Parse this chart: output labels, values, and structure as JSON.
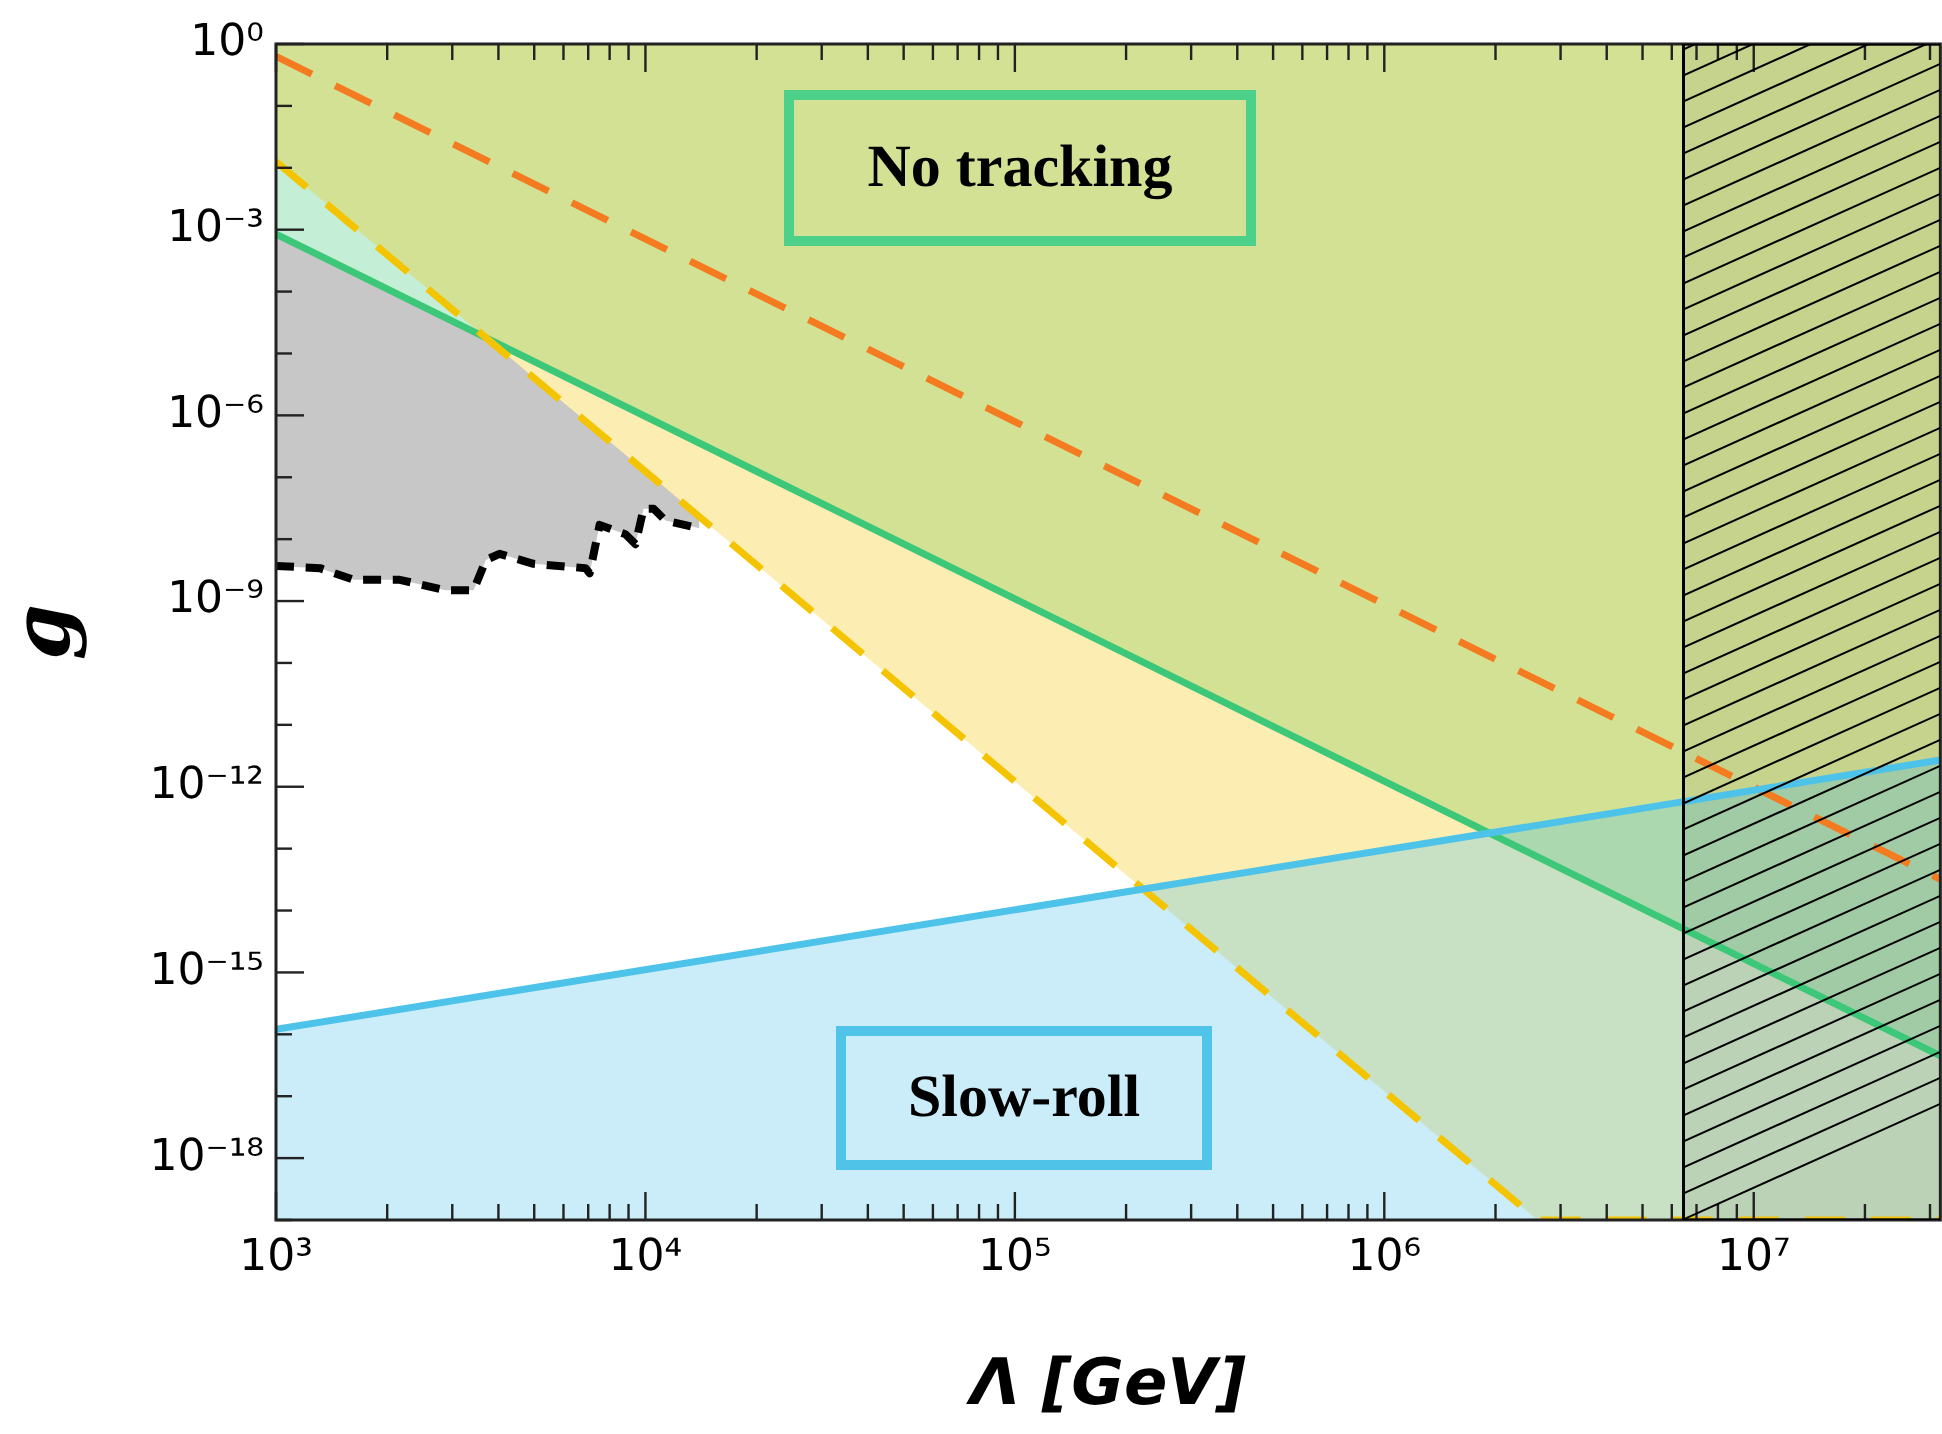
{
  "chart_data": {
    "type": "line",
    "xlabel": "Λ [GeV]",
    "ylabel": "g",
    "log": "xy",
    "xlim": [
      1000,
      32000000
    ],
    "ylim": [
      1e-19,
      1
    ],
    "xticks": [
      {
        "value": 1000,
        "label": "10³"
      },
      {
        "value": 2000,
        "label": null
      },
      {
        "value": 3000,
        "label": null
      },
      {
        "value": 4000,
        "label": null
      },
      {
        "value": 5000,
        "label": null
      },
      {
        "value": 6000,
        "label": null
      },
      {
        "value": 7000,
        "label": null
      },
      {
        "value": 8000,
        "label": null
      },
      {
        "value": 9000,
        "label": null
      },
      {
        "value": 10000,
        "label": "10⁴"
      },
      {
        "value": 20000,
        "label": null
      },
      {
        "value": 30000,
        "label": null
      },
      {
        "value": 40000,
        "label": null
      },
      {
        "value": 50000,
        "label": null
      },
      {
        "value": 60000,
        "label": null
      },
      {
        "value": 70000,
        "label": null
      },
      {
        "value": 80000,
        "label": null
      },
      {
        "value": 90000,
        "label": null
      },
      {
        "value": 100000,
        "label": "10⁵"
      },
      {
        "value": 200000,
        "label": null
      },
      {
        "value": 300000,
        "label": null
      },
      {
        "value": 400000,
        "label": null
      },
      {
        "value": 500000,
        "label": null
      },
      {
        "value": 600000,
        "label": null
      },
      {
        "value": 700000,
        "label": null
      },
      {
        "value": 800000,
        "label": null
      },
      {
        "value": 900000,
        "label": null
      },
      {
        "value": 1000000,
        "label": "10⁶"
      },
      {
        "value": 2000000,
        "label": null
      },
      {
        "value": 3000000,
        "label": null
      },
      {
        "value": 4000000,
        "label": null
      },
      {
        "value": 5000000,
        "label": null
      },
      {
        "value": 6000000,
        "label": null
      },
      {
        "value": 7000000,
        "label": null
      },
      {
        "value": 8000000,
        "label": null
      },
      {
        "value": 9000000,
        "label": null
      },
      {
        "value": 10000000,
        "label": "10⁷"
      },
      {
        "value": 20000000,
        "label": null
      },
      {
        "value": 30000000,
        "label": null
      }
    ],
    "yticks": [
      {
        "value": 1,
        "label": "10⁰"
      },
      {
        "value": 0.1,
        "label": null
      },
      {
        "value": 0.01,
        "label": null
      },
      {
        "value": 0.001,
        "label": "10⁻³"
      },
      {
        "value": 0.0001,
        "label": null
      },
      {
        "value": 1e-05,
        "label": null
      },
      {
        "value": 1e-06,
        "label": "10⁻⁶"
      },
      {
        "value": 1e-07,
        "label": null
      },
      {
        "value": 1e-08,
        "label": null
      },
      {
        "value": 1e-09,
        "label": "10⁻⁹"
      },
      {
        "value": 1e-10,
        "label": null
      },
      {
        "value": 1e-11,
        "label": null
      },
      {
        "value": 1e-12,
        "label": "10⁻¹²"
      },
      {
        "value": 1e-13,
        "label": null
      },
      {
        "value": 1e-14,
        "label": null
      },
      {
        "value": 1e-15,
        "label": "10⁻¹⁵"
      },
      {
        "value": 1e-16,
        "label": null
      },
      {
        "value": 1e-17,
        "label": null
      },
      {
        "value": 1e-18,
        "label": "10⁻¹⁸"
      },
      {
        "value": 1e-19,
        "label": null
      }
    ],
    "series": [
      {
        "type": "area",
        "color": "#4ec3ea",
        "line_style": "solid",
        "x": [
          1000,
          32000000
        ],
        "values": [
          1.2e-16,
          2.7e-12
        ]
      },
      {
        "color": "#f5c400",
        "line_style": "dashed",
        "x": [
          1000,
          2600000,
          32000000
        ],
        "values": [
          0.0126,
          1e-19,
          1e-19
        ],
        "lower": [
          0.0126,
          1e-19,
          1e-19
        ],
        "upper": [
          1,
          1,
          1
        ]
      },
      {
        "color": "#3cc878",
        "line_style": "solid",
        "x": [
          1000,
          32000000
        ],
        "values": [
          0.00085,
          4.5e-17
        ],
        "lower": [
          0.00085,
          4.5e-17
        ],
        "upper": [
          1,
          1
        ]
      },
      {
        "color": "#000000",
        "line_style": "dashed",
        "x": [
          1000,
          1315,
          1626,
          2163,
          2877,
          3428,
          3698,
          4027,
          4977,
          6887,
          7063,
          7516,
          8831,
          9397,
          9886,
          10520,
          11324,
          14000
        ],
        "values": [
          3.7e-09,
          3.4e-09,
          2.2e-09,
          2.2e-09,
          1.5e-09,
          1.5e-09,
          4.6e-09,
          5.8e-09,
          4e-09,
          3.4e-09,
          2.8e-09,
          1.7e-08,
          1.2e-08,
          8.3e-09,
          3.1e-08,
          3.1e-08,
          2e-08,
          1.5e-08
        ],
        "lower": [
          3.7e-09,
          3.4e-09,
          2.2e-09,
          2.2e-09,
          1.5e-09,
          1.5e-09,
          4.6e-09,
          5.8e-09,
          4e-09,
          3.4e-09,
          2.8e-09,
          1.7e-08,
          1.2e-08,
          8.3e-09,
          3.1e-08,
          3.1e-08,
          2e-08,
          1.5e-08
        ],
        "upper": [
          0.00085,
          0.00038,
          0.0002,
          8.7e-05,
          3.8e-05,
          2.2e-05,
          1.8e-05,
          1.2e-05,
          4.1e-06,
          8.1e-07,
          7.2e-07,
          5.2e-07,
          2.3e-07,
          1.7e-07,
          1.3e-07,
          9.8e-08,
          6.8e-08,
          2.3e-08
        ]
      },
      {
        "color": "#f47b20",
        "line_style": "dashed",
        "x": [
          1000,
          32000000
        ],
        "values": [
          0.63,
          3.2e-14
        ]
      }
    ],
    "bands": [
      {
        "axis": "x",
        "from": 6400000,
        "to": 32000000,
        "color": "#000000"
      }
    ],
    "annotations": [
      "No tracking",
      "Slow-roll"
    ]
  }
}
